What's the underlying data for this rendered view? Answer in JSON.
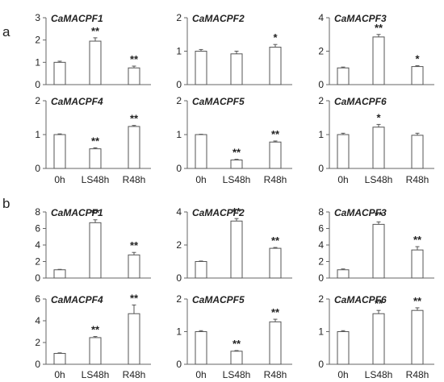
{
  "panel_labels": [
    "a",
    "b"
  ],
  "chart_data": [
    {
      "panel": "a",
      "type": "bar",
      "title": "CaMACPF1",
      "categories": [
        "0h",
        "LS48h",
        "R48h"
      ],
      "values": [
        1.0,
        1.95,
        0.75
      ],
      "errors": [
        0.05,
        0.15,
        0.08
      ],
      "significance": [
        "",
        "**",
        "**"
      ],
      "ylim": [
        0,
        3
      ],
      "yticks": [
        0,
        1,
        2,
        3
      ]
    },
    {
      "panel": "a",
      "type": "bar",
      "title": "CaMACPF2",
      "categories": [
        "0h",
        "LS48h",
        "R48h"
      ],
      "values": [
        1.0,
        0.92,
        1.12
      ],
      "errors": [
        0.05,
        0.08,
        0.08
      ],
      "significance": [
        "",
        "",
        "*"
      ],
      "ylim": [
        0,
        2
      ],
      "yticks": [
        0,
        1,
        2
      ]
    },
    {
      "panel": "a",
      "type": "bar",
      "title": "CaMACPF3",
      "categories": [
        "0h",
        "LS48h",
        "R48h"
      ],
      "values": [
        1.0,
        2.85,
        1.08
      ],
      "errors": [
        0.05,
        0.15,
        0.05
      ],
      "significance": [
        "",
        "**",
        "*"
      ],
      "ylim": [
        0,
        4
      ],
      "yticks": [
        0,
        2,
        4
      ]
    },
    {
      "panel": "a",
      "type": "bar",
      "title": "CaMACPF4",
      "categories": [
        "0h",
        "LS48h",
        "R48h"
      ],
      "values": [
        1.0,
        0.58,
        1.24
      ],
      "errors": [
        0.02,
        0.03,
        0.03
      ],
      "significance": [
        "",
        "**",
        "**"
      ],
      "ylim": [
        0,
        2
      ],
      "yticks": [
        0,
        1,
        2
      ]
    },
    {
      "panel": "a",
      "type": "bar",
      "title": "CaMACPF5",
      "categories": [
        "0h",
        "LS48h",
        "R48h"
      ],
      "values": [
        1.0,
        0.25,
        0.78
      ],
      "errors": [
        0.01,
        0.02,
        0.03
      ],
      "significance": [
        "",
        "**",
        "**"
      ],
      "ylim": [
        0,
        2
      ],
      "yticks": [
        0,
        1,
        2
      ]
    },
    {
      "panel": "a",
      "type": "bar",
      "title": "CaMACPF6",
      "categories": [
        "0h",
        "LS48h",
        "R48h"
      ],
      "values": [
        1.0,
        1.22,
        0.98
      ],
      "errors": [
        0.04,
        0.08,
        0.06
      ],
      "significance": [
        "",
        "*",
        ""
      ],
      "ylim": [
        0,
        2
      ],
      "yticks": [
        0,
        1,
        2
      ]
    },
    {
      "panel": "b",
      "type": "bar",
      "title": "CaMACPF1",
      "categories": [
        "0h",
        "LS48h",
        "R48h"
      ],
      "values": [
        1.0,
        6.7,
        2.8
      ],
      "errors": [
        0.05,
        0.35,
        0.3
      ],
      "significance": [
        "",
        "**",
        "**"
      ],
      "ylim": [
        0,
        8
      ],
      "yticks": [
        0,
        2,
        4,
        6,
        8
      ]
    },
    {
      "panel": "b",
      "type": "bar",
      "title": "CaMACPF2",
      "categories": [
        "0h",
        "LS48h",
        "R48h"
      ],
      "values": [
        1.0,
        3.45,
        1.8
      ],
      "errors": [
        0.03,
        0.15,
        0.05
      ],
      "significance": [
        "",
        "**",
        "**"
      ],
      "ylim": [
        0,
        4
      ],
      "yticks": [
        0,
        2,
        4
      ]
    },
    {
      "panel": "b",
      "type": "bar",
      "title": "CaMACPF3",
      "categories": [
        "0h",
        "LS48h",
        "R48h"
      ],
      "values": [
        1.0,
        6.5,
        3.4
      ],
      "errors": [
        0.1,
        0.3,
        0.4
      ],
      "significance": [
        "",
        "**",
        "**"
      ],
      "ylim": [
        0,
        8
      ],
      "yticks": [
        0,
        2,
        4,
        6,
        8
      ]
    },
    {
      "panel": "b",
      "type": "bar",
      "title": "CaMACPF4",
      "categories": [
        "0h",
        "LS48h",
        "R48h"
      ],
      "values": [
        1.0,
        2.45,
        4.65
      ],
      "errors": [
        0.05,
        0.1,
        0.8
      ],
      "significance": [
        "",
        "**",
        "**"
      ],
      "ylim": [
        0,
        6
      ],
      "yticks": [
        0,
        2,
        4,
        6
      ]
    },
    {
      "panel": "b",
      "type": "bar",
      "title": "CaMACPF5",
      "categories": [
        "0h",
        "LS48h",
        "R48h"
      ],
      "values": [
        1.0,
        0.4,
        1.3
      ],
      "errors": [
        0.03,
        0.02,
        0.08
      ],
      "significance": [
        "",
        "**",
        "**"
      ],
      "ylim": [
        0,
        2
      ],
      "yticks": [
        0,
        1,
        2
      ]
    },
    {
      "panel": "b",
      "type": "bar",
      "title": "CaMACPF6",
      "categories": [
        "0h",
        "LS48h",
        "R48h"
      ],
      "values": [
        1.0,
        1.55,
        1.65
      ],
      "errors": [
        0.03,
        0.1,
        0.08
      ],
      "significance": [
        "",
        "**",
        "**"
      ],
      "ylim": [
        0,
        2
      ],
      "yticks": [
        0,
        1,
        2
      ]
    }
  ]
}
